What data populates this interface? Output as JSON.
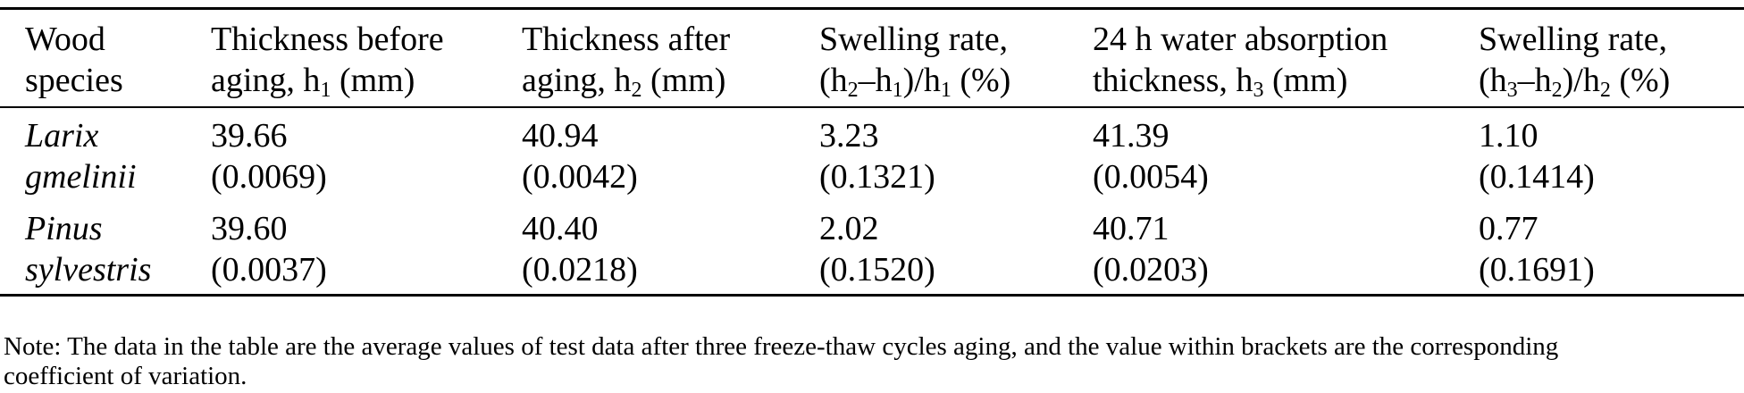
{
  "table": {
    "headers": [
      {
        "line1": "Wood",
        "line2_pre": "species",
        "line2_sub": "",
        "line2_post": ""
      },
      {
        "line1": "Thickness before",
        "line2_pre": "aging, h",
        "line2_sub": "1",
        "line2_post": " (mm)"
      },
      {
        "line1": "Thickness after",
        "line2_pre": "aging, h",
        "line2_sub": "2",
        "line2_post": " (mm)"
      },
      {
        "line1": "Swelling rate,",
        "line2_pre": "(h",
        "line2_sub": "2",
        "line2_mid": "–h",
        "line2_sub2": "1",
        "line2_mid2": ")/h",
        "line2_sub3": "1",
        "line2_post": " (%)"
      },
      {
        "line1": "24 h water absorption",
        "line2_pre": "thickness, h",
        "line2_sub": "3",
        "line2_post": " (mm)"
      },
      {
        "line1": "Swelling rate,",
        "line2_pre": "(h",
        "line2_sub": "3",
        "line2_mid": "–h",
        "line2_sub2": "2",
        "line2_mid2": ")/h",
        "line2_sub3": "2",
        "line2_post": " (%)"
      }
    ],
    "rows": [
      {
        "species_line1": "Larix",
        "species_line2": "gmelinii",
        "cells": [
          {
            "value": "39.66",
            "cv": "(0.0069)"
          },
          {
            "value": "40.94",
            "cv": "(0.0042)"
          },
          {
            "value": "3.23",
            "cv": "(0.1321)"
          },
          {
            "value": "41.39",
            "cv": "(0.0054)"
          },
          {
            "value": "1.10",
            "cv": "(0.1414)"
          }
        ]
      },
      {
        "species_line1": "Pinus",
        "species_line2": "sylvestris",
        "cells": [
          {
            "value": "39.60",
            "cv": "(0.0037)"
          },
          {
            "value": "40.40",
            "cv": "(0.0218)"
          },
          {
            "value": "2.02",
            "cv": "(0.1520)"
          },
          {
            "value": "40.71",
            "cv": "(0.0203)"
          },
          {
            "value": "0.77",
            "cv": "(0.1691)"
          }
        ]
      }
    ]
  },
  "note": {
    "line1": "Note: The data in the table are the average values of test data after three freeze-thaw cycles aging, and the value within brackets are the corresponding",
    "line2": "coefficient of variation."
  }
}
